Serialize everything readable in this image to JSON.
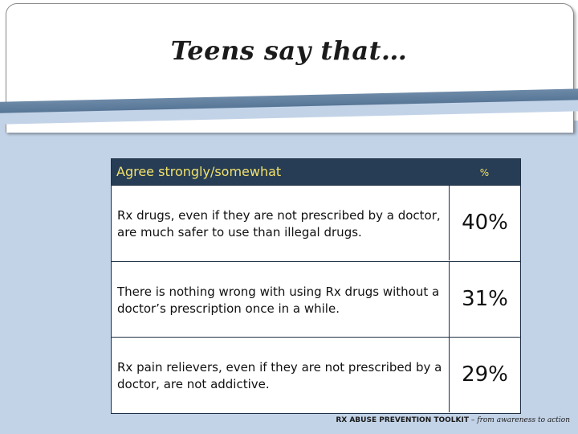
{
  "slide": {
    "title": "Teens say that…"
  },
  "table": {
    "header_label": "Agree strongly/somewhat",
    "header_value": "%",
    "rows": [
      {
        "statement": "Rx drugs, even if they are not prescribed by a doctor, are much safer to use than illegal drugs.",
        "value": "40%"
      },
      {
        "statement": "There is nothing wrong with using Rx drugs without a doctor’s prescription once in a while.",
        "value": "31%"
      },
      {
        "statement": "Rx pain relievers, even if they are not prescribed by a doctor, are not addictive.",
        "value": "29%"
      }
    ]
  },
  "footer": {
    "brand": "RX ABUSE PREVENTION TOOLKIT",
    "separator": " – ",
    "tagline": "from awareness to action"
  },
  "colors": {
    "header_bg": "#263d55",
    "header_text": "#f2e06b",
    "panel_bg": "#c3d3e7",
    "stripe": "#4e6d8e"
  }
}
